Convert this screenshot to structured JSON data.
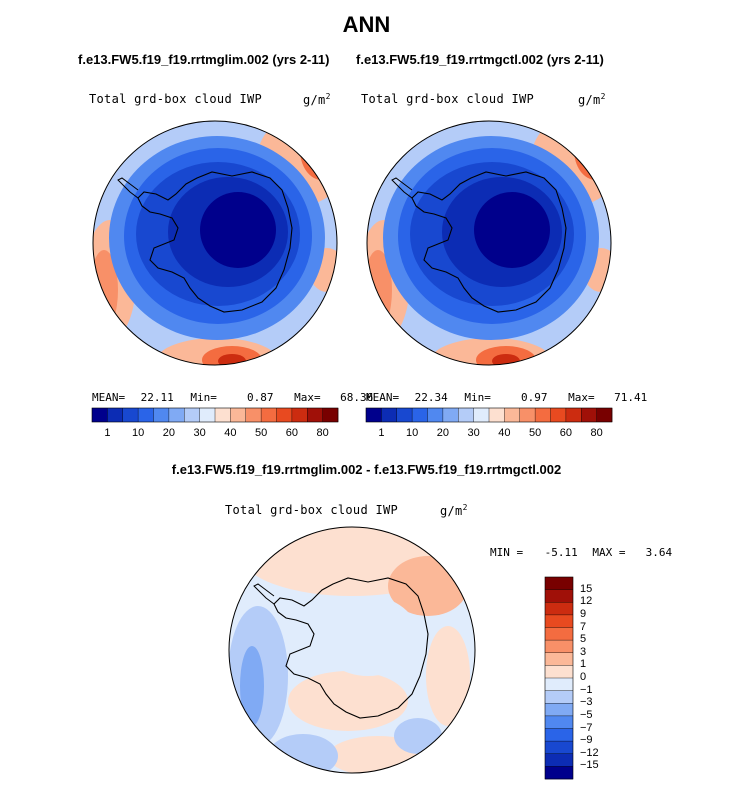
{
  "title": "ANN",
  "case_left": "f.e13.FW5.f19_f19.rrtmglim.002 (yrs 2-11)",
  "case_right": "f.e13.FW5.f19_f19.rrtmgctl.002 (yrs 2-11)",
  "diff_title": "f.e13.FW5.f19_f19.rrtmglim.002 - f.e13.FW5.f19_f19.rrtmgctl.002",
  "variable_label": "Total grd-box cloud IWP",
  "units_label": "g/m",
  "units_exponent": "2",
  "left_stats": {
    "mean_label": "MEAN=",
    "mean": "22.11",
    "min_label": "Min=",
    "min": "0.87",
    "max_label": "Max=",
    "max": "68.36"
  },
  "right_stats": {
    "mean_label": "MEAN=",
    "mean": "22.34",
    "min_label": "Min=",
    "min": "0.97",
    "max_label": "Max=",
    "max": "71.41"
  },
  "diff_stats": {
    "min_label": "MIN =",
    "min": "-5.11",
    "max_label": "MAX =",
    "max": "3.64"
  },
  "abs_colorbar": {
    "labels": [
      "1",
      "10",
      "20",
      "30",
      "40",
      "50",
      "60",
      "80"
    ],
    "colors": [
      "#00008c",
      "#0c2cb4",
      "#1848d0",
      "#2a64e8",
      "#5088f0",
      "#80aaf4",
      "#b4ccf8",
      "#e0ecfc",
      "#fde0d0",
      "#fbb898",
      "#f89068",
      "#f46c40",
      "#e84a20",
      "#cc2c10",
      "#a01008",
      "#780000"
    ]
  },
  "diff_colorbar": {
    "labels": [
      "15",
      "12",
      "9",
      "7",
      "5",
      "3",
      "1",
      "0",
      "−1",
      "−3",
      "−5",
      "−7",
      "−9",
      "−12",
      "−15"
    ],
    "colors": [
      "#780000",
      "#a01008",
      "#cc2c10",
      "#e84a20",
      "#f46c40",
      "#f89068",
      "#fbb898",
      "#fde0d0",
      "#e0ecfc",
      "#b4ccf8",
      "#80aaf4",
      "#5088f0",
      "#2a64e8",
      "#1848d0",
      "#0c2cb4",
      "#00008c"
    ]
  },
  "map_colors": {
    "ocean_far": "#b4ccf8",
    "ocean_mid": "#5088f0",
    "ice_ring": "#2a64e8",
    "ice_inner": "#1848d0",
    "ice_core": "#0c2cb4",
    "ice_deep": "#00008c",
    "warm_light": "#fbb898",
    "warm_mid": "#f89068",
    "warm_strong": "#f46c40",
    "warm_core": "#cc2c10",
    "diff_neg_light": "#e0ecfc",
    "diff_neg_mid": "#b4ccf8",
    "diff_neg_strong": "#80aaf4",
    "diff_pos_light": "#fde0d0",
    "diff_pos_mid": "#fbb898"
  }
}
